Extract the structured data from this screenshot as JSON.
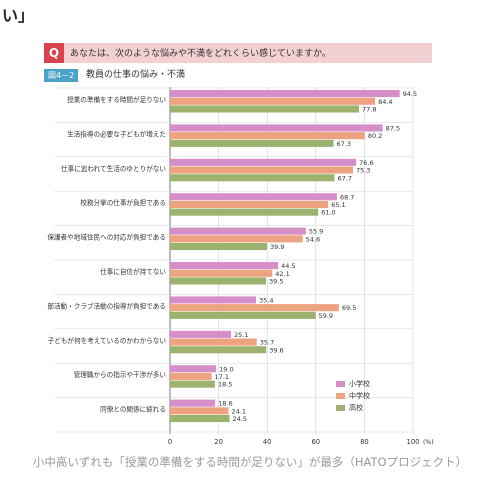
{
  "header": {
    "top_fragment": "い」",
    "question_badge": "Q",
    "question_text": "あなたは、次のような悩みや不満をどれくらい感じていますか。",
    "figure_badge": "図4－2",
    "figure_title": "教員の仕事の悩み・不満"
  },
  "caption": "小中高いずれも「授業の準備をする時間が足りない」が最多（HATOプロジェクト）",
  "colors": {
    "elementary": "#d68ec9",
    "junior_high": "#eda37f",
    "high_school": "#9bb36f",
    "question_bg": "#f3d1d3",
    "question_badge": "#d6434c",
    "figure_badge": "#4aa3c8"
  },
  "chart_data": {
    "type": "bar",
    "orientation": "horizontal",
    "categories": [
      "授業の準備をする時間が足りない",
      "生活指導の必要な子どもが増えた",
      "仕事に追われて生活のゆとりがない",
      "校務分掌の仕事が負担である",
      "保護者や地域住民への対応が負担である",
      "仕事に自信が持てない",
      "部活動・クラブ活動の指導が負担である",
      "子どもが何を考えているのかわからない",
      "管理職からの指示や干渉が多い",
      "同僚との関係に疲れる"
    ],
    "series": [
      {
        "name": "小学校",
        "values": [
          94.5,
          87.5,
          76.6,
          68.7,
          55.9,
          44.5,
          35.4,
          25.1,
          19.0,
          18.6
        ]
      },
      {
        "name": "中学校",
        "values": [
          84.4,
          80.2,
          75.3,
          65.1,
          54.6,
          42.1,
          69.5,
          35.7,
          17.1,
          24.1
        ]
      },
      {
        "name": "高校",
        "values": [
          77.8,
          67.3,
          67.7,
          61.0,
          39.9,
          39.5,
          59.9,
          39.6,
          18.5,
          24.5
        ]
      }
    ],
    "value_labels": [
      [
        "94.5",
        "87.5",
        "76.6",
        "68.7",
        "55.9",
        "44.5",
        "35.4",
        "25.1",
        "19.0",
        "18.6"
      ],
      [
        "84.4",
        "80.2",
        "75.3",
        "65.1",
        "54.6",
        "42.1",
        "69.5",
        "35.7",
        "17.1",
        "24.1"
      ],
      [
        "77.8",
        "67.3",
        "67.7",
        "61.0",
        "39.9",
        "39.5",
        "59.9",
        "39.6",
        "18.5",
        "24.5"
      ]
    ],
    "x_ticks": [
      "0",
      "20",
      "40",
      "60",
      "80",
      "100"
    ],
    "x_unit": "(%)",
    "xlim": [
      0,
      100
    ],
    "legend": "bottom-right"
  }
}
